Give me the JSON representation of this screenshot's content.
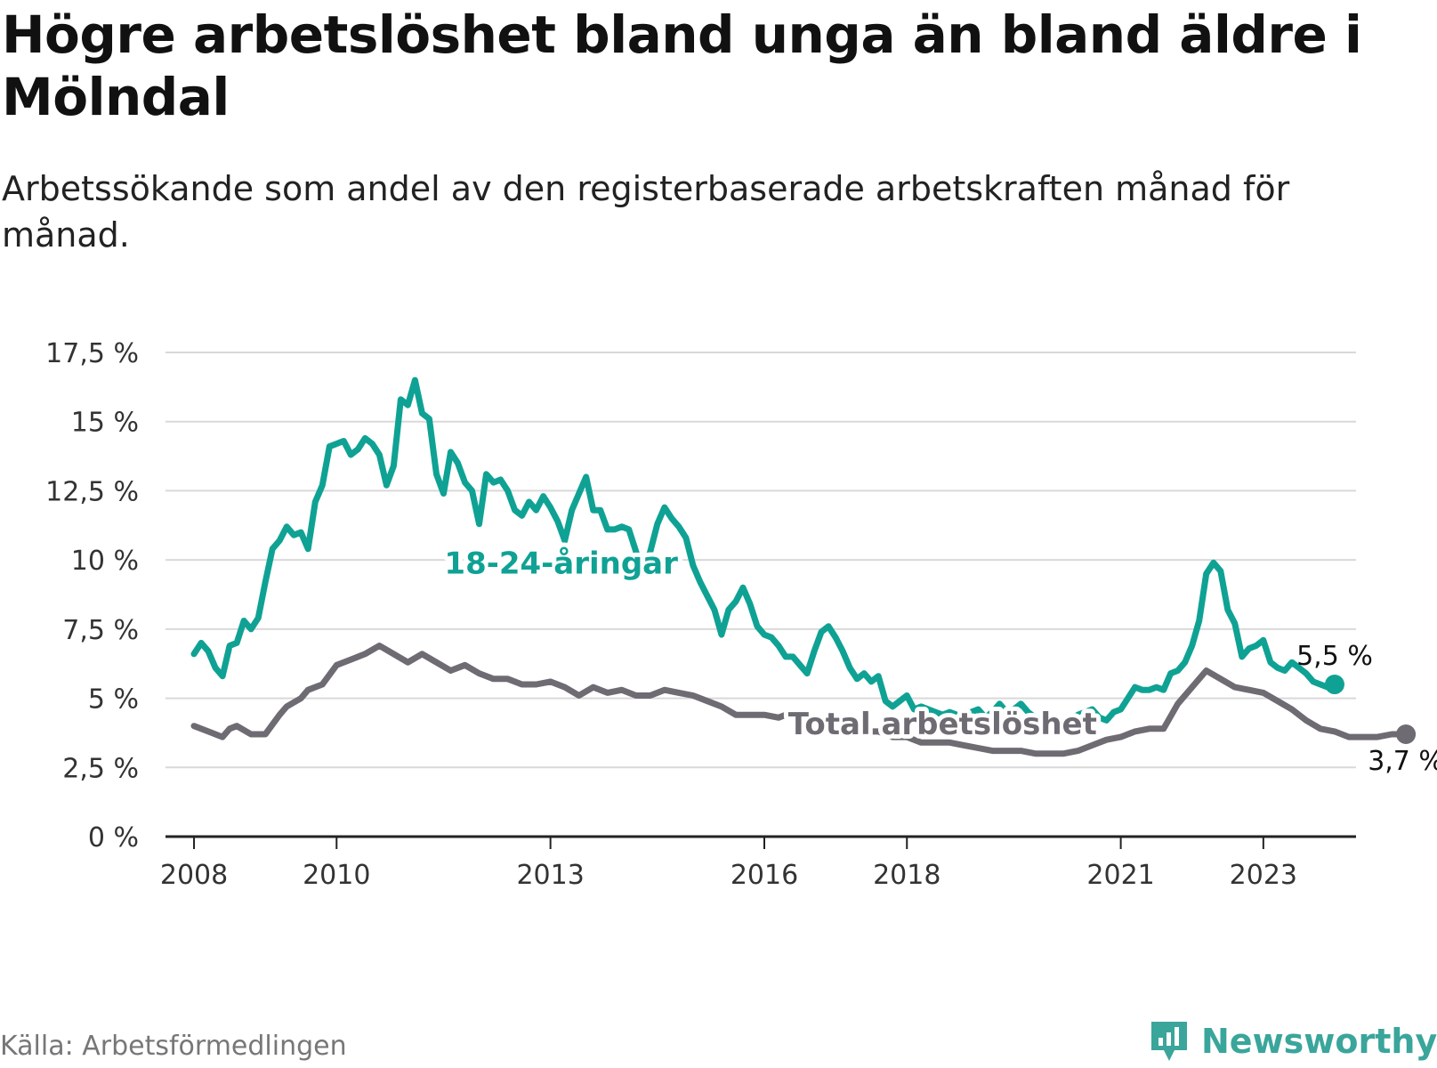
{
  "title": "Högre arbetslöshet bland unga än bland äldre i Mölndal",
  "subtitle": "Arbetssökande som andel av den registerbaserade arbetskraften månad för månad.",
  "source": "Källa: Arbetsförmedlingen",
  "brand": "Newsworthy",
  "colors": {
    "youth": "#0fa294",
    "total": "#6e6b73",
    "grid": "#d9d9d9",
    "axis": "#222222"
  },
  "chart_data": {
    "type": "line",
    "title": "Högre arbetslöshet bland unga än bland äldre i Mölndal",
    "xlabel": "",
    "ylabel": "",
    "ylim": [
      0,
      17.5
    ],
    "xlim": [
      2007.6,
      2024.3
    ],
    "y_ticks": [
      0,
      2.5,
      5,
      7.5,
      10,
      12.5,
      15,
      17.5
    ],
    "y_tick_labels": [
      "0 %",
      "2,5 %",
      "5 %",
      "7,5 %",
      "10 %",
      "12,5 %",
      "15 %",
      "17,5 %"
    ],
    "x_ticks": [
      2008,
      2010,
      2013,
      2016,
      2018,
      2021,
      2023
    ],
    "x_tick_labels": [
      "2008",
      "2010",
      "2013",
      "2016",
      "2018",
      "2021",
      "2023"
    ],
    "grid": true,
    "series": [
      {
        "name": "18-24-åringar",
        "label": "18-24-åringar",
        "end_label": "5,5 %",
        "end_value": 5.5,
        "points": [
          [
            2008.0,
            6.6
          ],
          [
            2008.1,
            7.0
          ],
          [
            2008.2,
            6.7
          ],
          [
            2008.3,
            6.1
          ],
          [
            2008.4,
            5.8
          ],
          [
            2008.5,
            6.9
          ],
          [
            2008.6,
            7.0
          ],
          [
            2008.7,
            7.8
          ],
          [
            2008.8,
            7.5
          ],
          [
            2008.9,
            7.9
          ],
          [
            2009.0,
            9.2
          ],
          [
            2009.1,
            10.4
          ],
          [
            2009.2,
            10.7
          ],
          [
            2009.3,
            11.2
          ],
          [
            2009.4,
            10.9
          ],
          [
            2009.5,
            11.0
          ],
          [
            2009.6,
            10.4
          ],
          [
            2009.7,
            12.1
          ],
          [
            2009.8,
            12.7
          ],
          [
            2009.9,
            14.1
          ],
          [
            2010.0,
            14.2
          ],
          [
            2010.1,
            14.3
          ],
          [
            2010.2,
            13.8
          ],
          [
            2010.3,
            14.0
          ],
          [
            2010.4,
            14.4
          ],
          [
            2010.5,
            14.2
          ],
          [
            2010.6,
            13.8
          ],
          [
            2010.7,
            12.7
          ],
          [
            2010.8,
            13.4
          ],
          [
            2010.9,
            15.8
          ],
          [
            2011.0,
            15.6
          ],
          [
            2011.1,
            16.5
          ],
          [
            2011.2,
            15.3
          ],
          [
            2011.3,
            15.1
          ],
          [
            2011.4,
            13.1
          ],
          [
            2011.5,
            12.4
          ],
          [
            2011.6,
            13.9
          ],
          [
            2011.7,
            13.5
          ],
          [
            2011.8,
            12.8
          ],
          [
            2011.9,
            12.5
          ],
          [
            2012.0,
            11.3
          ],
          [
            2012.1,
            13.1
          ],
          [
            2012.2,
            12.8
          ],
          [
            2012.3,
            12.9
          ],
          [
            2012.4,
            12.5
          ],
          [
            2012.5,
            11.8
          ],
          [
            2012.6,
            11.6
          ],
          [
            2012.7,
            12.1
          ],
          [
            2012.8,
            11.8
          ],
          [
            2012.9,
            12.3
          ],
          [
            2013.0,
            11.9
          ],
          [
            2013.1,
            11.4
          ],
          [
            2013.2,
            10.7
          ],
          [
            2013.3,
            11.8
          ],
          [
            2013.4,
            12.4
          ],
          [
            2013.5,
            13.0
          ],
          [
            2013.6,
            11.8
          ],
          [
            2013.7,
            11.8
          ],
          [
            2013.8,
            11.1
          ],
          [
            2013.9,
            11.1
          ],
          [
            2014.0,
            11.2
          ],
          [
            2014.1,
            11.1
          ],
          [
            2014.2,
            10.3
          ],
          [
            2014.3,
            9.5
          ],
          [
            2014.4,
            10.3
          ],
          [
            2014.5,
            11.3
          ],
          [
            2014.6,
            11.9
          ],
          [
            2014.7,
            11.5
          ],
          [
            2014.8,
            11.2
          ],
          [
            2014.9,
            10.8
          ],
          [
            2015.0,
            9.8
          ],
          [
            2015.1,
            9.2
          ],
          [
            2015.2,
            8.7
          ],
          [
            2015.3,
            8.2
          ],
          [
            2015.4,
            7.3
          ],
          [
            2015.5,
            8.2
          ],
          [
            2015.6,
            8.5
          ],
          [
            2015.7,
            9.0
          ],
          [
            2015.8,
            8.4
          ],
          [
            2015.9,
            7.6
          ],
          [
            2016.0,
            7.3
          ],
          [
            2016.1,
            7.2
          ],
          [
            2016.2,
            6.9
          ],
          [
            2016.3,
            6.5
          ],
          [
            2016.4,
            6.5
          ],
          [
            2016.5,
            6.2
          ],
          [
            2016.6,
            5.9
          ],
          [
            2016.7,
            6.7
          ],
          [
            2016.8,
            7.4
          ],
          [
            2016.9,
            7.6
          ],
          [
            2017.0,
            7.2
          ],
          [
            2017.1,
            6.7
          ],
          [
            2017.2,
            6.1
          ],
          [
            2017.3,
            5.7
          ],
          [
            2017.4,
            5.9
          ],
          [
            2017.5,
            5.6
          ],
          [
            2017.6,
            5.8
          ],
          [
            2017.7,
            4.9
          ],
          [
            2017.8,
            4.7
          ],
          [
            2017.9,
            4.9
          ],
          [
            2018.0,
            5.1
          ],
          [
            2018.1,
            4.6
          ],
          [
            2018.2,
            4.7
          ],
          [
            2018.3,
            4.6
          ],
          [
            2018.4,
            4.5
          ],
          [
            2018.5,
            4.4
          ],
          [
            2018.6,
            4.5
          ],
          [
            2018.7,
            4.4
          ],
          [
            2018.8,
            4.3
          ],
          [
            2018.9,
            4.5
          ],
          [
            2019.0,
            4.6
          ],
          [
            2019.1,
            4.3
          ],
          [
            2019.2,
            4.5
          ],
          [
            2019.3,
            4.8
          ],
          [
            2019.4,
            4.5
          ],
          [
            2019.5,
            4.6
          ],
          [
            2019.6,
            4.8
          ],
          [
            2019.7,
            4.5
          ],
          [
            2019.8,
            4.3
          ],
          [
            2019.9,
            4.2
          ],
          [
            2020.0,
            4.3
          ],
          [
            2020.1,
            4.1
          ],
          [
            2020.2,
            4.0
          ],
          [
            2020.3,
            4.2
          ],
          [
            2020.4,
            4.4
          ],
          [
            2020.5,
            4.5
          ],
          [
            2020.6,
            4.6
          ],
          [
            2020.7,
            4.3
          ],
          [
            2020.8,
            4.2
          ],
          [
            2020.9,
            4.5
          ],
          [
            2021.0,
            4.6
          ],
          [
            2021.1,
            5.0
          ],
          [
            2021.2,
            5.4
          ],
          [
            2021.3,
            5.3
          ],
          [
            2021.4,
            5.3
          ],
          [
            2021.5,
            5.4
          ],
          [
            2021.6,
            5.3
          ],
          [
            2021.7,
            5.9
          ],
          [
            2021.8,
            6.0
          ],
          [
            2021.9,
            6.3
          ],
          [
            2022.0,
            6.9
          ],
          [
            2022.1,
            7.8
          ],
          [
            2022.2,
            9.5
          ],
          [
            2022.3,
            9.9
          ],
          [
            2022.4,
            9.6
          ],
          [
            2022.5,
            8.2
          ],
          [
            2022.6,
            7.7
          ],
          [
            2022.7,
            6.5
          ],
          [
            2022.8,
            6.8
          ],
          [
            2022.9,
            6.9
          ],
          [
            2023.0,
            7.1
          ],
          [
            2023.1,
            6.3
          ],
          [
            2023.2,
            6.1
          ],
          [
            2023.3,
            6.0
          ],
          [
            2023.4,
            6.3
          ],
          [
            2023.5,
            6.1
          ],
          [
            2023.6,
            5.9
          ],
          [
            2023.7,
            5.6
          ],
          [
            2023.8,
            5.5
          ],
          [
            2023.9,
            5.4
          ],
          [
            2024.0,
            5.5
          ]
        ]
      },
      {
        "name": "Total arbetslöshet",
        "label": "Total arbetslöshet",
        "end_label": "3,7 %",
        "end_value": 3.7,
        "points": [
          [
            2008.0,
            4.0
          ],
          [
            2008.2,
            3.8
          ],
          [
            2008.4,
            3.6
          ],
          [
            2008.5,
            3.9
          ],
          [
            2008.6,
            4.0
          ],
          [
            2008.8,
            3.7
          ],
          [
            2009.0,
            3.7
          ],
          [
            2009.2,
            4.4
          ],
          [
            2009.3,
            4.7
          ],
          [
            2009.5,
            5.0
          ],
          [
            2009.6,
            5.3
          ],
          [
            2009.8,
            5.5
          ],
          [
            2010.0,
            6.2
          ],
          [
            2010.2,
            6.4
          ],
          [
            2010.4,
            6.6
          ],
          [
            2010.6,
            6.9
          ],
          [
            2010.8,
            6.6
          ],
          [
            2011.0,
            6.3
          ],
          [
            2011.2,
            6.6
          ],
          [
            2011.4,
            6.3
          ],
          [
            2011.6,
            6.0
          ],
          [
            2011.8,
            6.2
          ],
          [
            2012.0,
            5.9
          ],
          [
            2012.2,
            5.7
          ],
          [
            2012.4,
            5.7
          ],
          [
            2012.6,
            5.5
          ],
          [
            2012.8,
            5.5
          ],
          [
            2013.0,
            5.6
          ],
          [
            2013.2,
            5.4
          ],
          [
            2013.4,
            5.1
          ],
          [
            2013.6,
            5.4
          ],
          [
            2013.8,
            5.2
          ],
          [
            2014.0,
            5.3
          ],
          [
            2014.2,
            5.1
          ],
          [
            2014.4,
            5.1
          ],
          [
            2014.6,
            5.3
          ],
          [
            2014.8,
            5.2
          ],
          [
            2015.0,
            5.1
          ],
          [
            2015.2,
            4.9
          ],
          [
            2015.4,
            4.7
          ],
          [
            2015.6,
            4.4
          ],
          [
            2015.8,
            4.4
          ],
          [
            2016.0,
            4.4
          ],
          [
            2016.2,
            4.3
          ],
          [
            2016.4,
            4.5
          ],
          [
            2016.6,
            4.3
          ],
          [
            2016.8,
            4.1
          ],
          [
            2017.0,
            4.2
          ],
          [
            2017.2,
            4.0
          ],
          [
            2017.4,
            3.8
          ],
          [
            2017.6,
            3.8
          ],
          [
            2017.8,
            3.6
          ],
          [
            2018.0,
            3.6
          ],
          [
            2018.2,
            3.4
          ],
          [
            2018.4,
            3.4
          ],
          [
            2018.6,
            3.4
          ],
          [
            2018.8,
            3.3
          ],
          [
            2019.0,
            3.2
          ],
          [
            2019.2,
            3.1
          ],
          [
            2019.4,
            3.1
          ],
          [
            2019.6,
            3.1
          ],
          [
            2019.8,
            3.0
          ],
          [
            2020.0,
            3.0
          ],
          [
            2020.2,
            3.0
          ],
          [
            2020.4,
            3.1
          ],
          [
            2020.6,
            3.3
          ],
          [
            2020.8,
            3.5
          ],
          [
            2021.0,
            3.6
          ],
          [
            2021.2,
            3.8
          ],
          [
            2021.4,
            3.9
          ],
          [
            2021.6,
            3.9
          ],
          [
            2021.8,
            4.8
          ],
          [
            2022.0,
            5.4
          ],
          [
            2022.2,
            6.0
          ],
          [
            2022.4,
            5.7
          ],
          [
            2022.6,
            5.4
          ],
          [
            2022.8,
            5.3
          ],
          [
            2023.0,
            5.2
          ],
          [
            2023.2,
            4.9
          ],
          [
            2023.4,
            4.6
          ],
          [
            2023.6,
            4.2
          ],
          [
            2023.8,
            3.9
          ],
          [
            2024.0,
            3.8
          ],
          [
            2024.2,
            3.6
          ],
          [
            2024.4,
            3.6
          ],
          [
            2024.6,
            3.6
          ],
          [
            2024.8,
            3.7
          ],
          [
            2025.0,
            3.7
          ]
        ]
      }
    ],
    "annotations": [
      {
        "text": "18-24-åringar",
        "series": "18-24-åringar"
      },
      {
        "text": "Total arbetslöshet",
        "series": "Total arbetslöshet"
      }
    ]
  }
}
